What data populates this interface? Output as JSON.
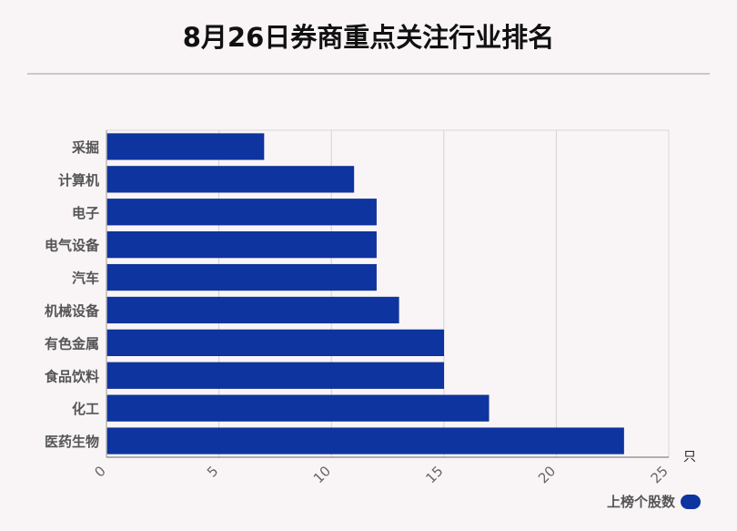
{
  "chart_data": {
    "type": "bar",
    "orientation": "horizontal",
    "title": "8月26日券商重点关注行业排名",
    "categories": [
      "采掘",
      "计算机",
      "电子",
      "电气设备",
      "汽车",
      "机械设备",
      "有色金属",
      "食品饮料",
      "化工",
      "医药生物"
    ],
    "series": [
      {
        "name": "上榜个股数",
        "values": [
          7,
          11,
          12,
          12,
          12,
          13,
          15,
          15,
          17,
          23
        ],
        "color": "#0e34a0"
      }
    ],
    "xlim": [
      0,
      25
    ],
    "xticks": [
      0,
      5,
      10,
      15,
      20,
      25
    ],
    "xunit": "只",
    "grid": true,
    "legend": "bottom-right"
  }
}
